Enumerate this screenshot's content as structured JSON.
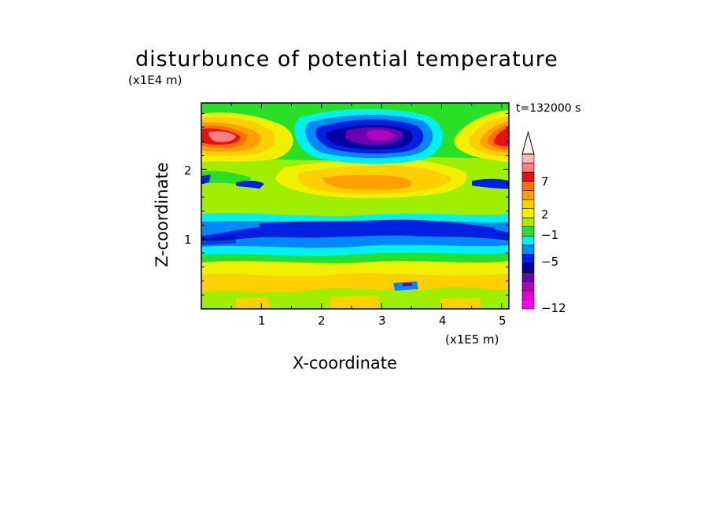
{
  "chart_data": {
    "type": "heatmap",
    "title": "disturbunce of potential temperature",
    "y_unit_label": "(x1E4 m)",
    "x_unit_label": "(x1E5 m)",
    "time_label": "t=132000 s",
    "xlabel": "X-coordinate",
    "ylabel": "Z-coordinate",
    "xlim": [
      0,
      5.12
    ],
    "ylim": [
      0,
      2.95
    ],
    "x_ticks": [
      "1",
      "2",
      "3",
      "4",
      "5"
    ],
    "y_ticks": [
      "1",
      "2"
    ],
    "colorbar": {
      "tick_labels": [
        "7",
        "2",
        "−1",
        "−5",
        "−12"
      ],
      "colors": [
        "#f7b8b8",
        "#ff8080",
        "#e81010",
        "#ff7000",
        "#ffa000",
        "#ffd000",
        "#f0f000",
        "#a0ee00",
        "#28e028",
        "#00f0f0",
        "#0088ff",
        "#0020e0",
        "#0000a0",
        "#6a00b0",
        "#b000c0",
        "#e000d0",
        "#ff00ff"
      ],
      "extend_top_color": "#fff4f4"
    },
    "features": [
      {
        "desc": "warm anomaly upper-left",
        "x": 0.5,
        "z": 2.45,
        "value": 8
      },
      {
        "desc": "warm anomaly upper-right",
        "x": 5.0,
        "z": 2.45,
        "value": 7
      },
      {
        "desc": "cold anomaly upper-center",
        "x": 3.0,
        "z": 2.5,
        "value": -8
      },
      {
        "desc": "warm band mid",
        "x": 3.0,
        "z": 1.8,
        "value": 3
      },
      {
        "desc": "cold band",
        "x": 3.0,
        "z": 1.05,
        "value": -4
      }
    ]
  }
}
